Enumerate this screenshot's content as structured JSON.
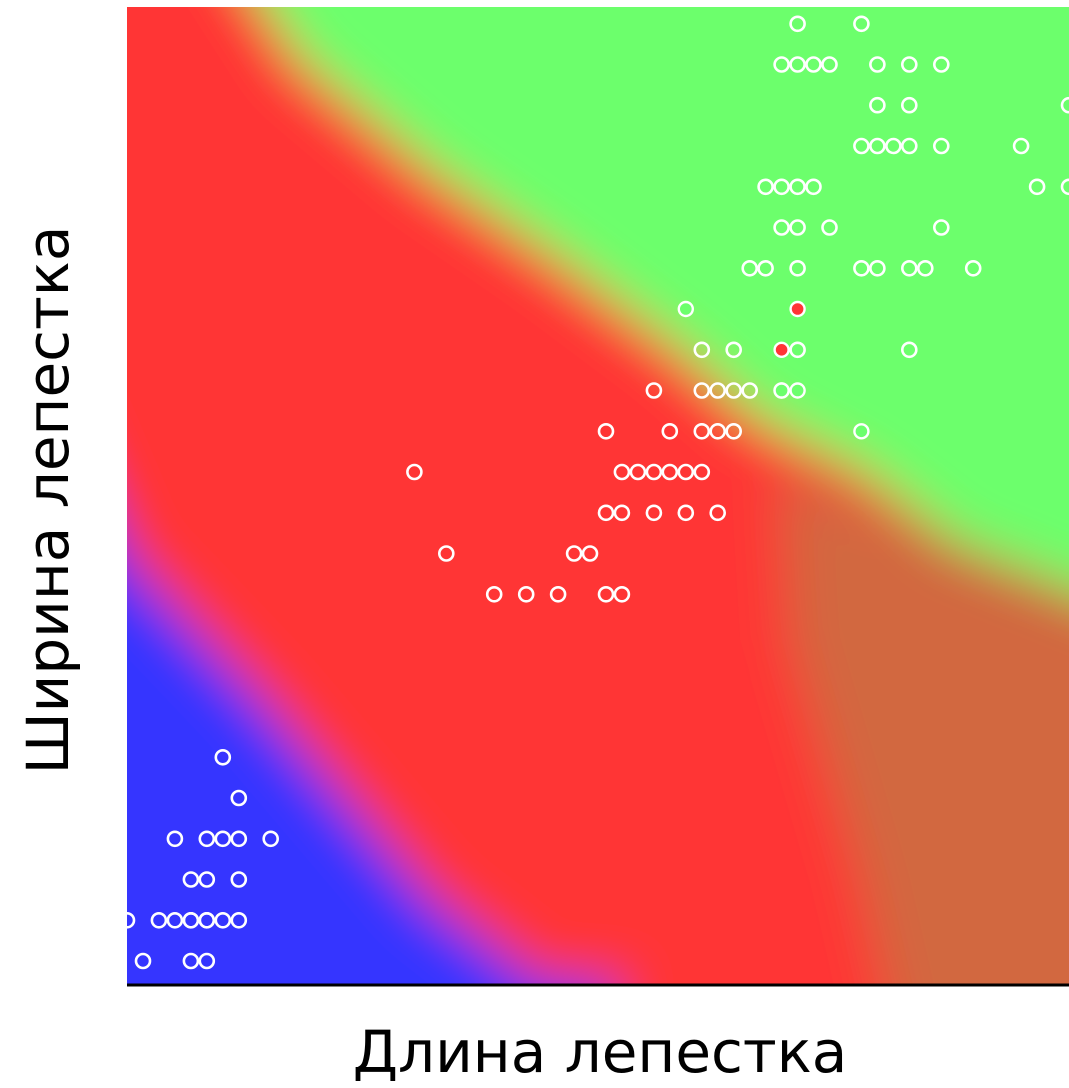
{
  "chart_data": {
    "type": "scatter",
    "xlabel": "Длина лепестка",
    "ylabel": "Ширина лепестка",
    "grid": false,
    "legend": "none",
    "xlim": [
      1.0,
      6.9
    ],
    "ylim": [
      0.1,
      2.5
    ],
    "region_colors": {
      "class_a": "#3535ff",
      "class_b": "#ff3535",
      "class_c": "#6cff6c"
    },
    "points": {
      "hollow": [
        [
          1.0,
          0.2
        ],
        [
          1.2,
          0.2
        ],
        [
          1.3,
          0.2
        ],
        [
          1.4,
          0.2
        ],
        [
          1.4,
          0.2
        ],
        [
          1.5,
          0.2
        ],
        [
          1.5,
          0.2
        ],
        [
          1.6,
          0.2
        ],
        [
          1.7,
          0.2
        ],
        [
          1.1,
          0.1
        ],
        [
          1.4,
          0.1
        ],
        [
          1.5,
          0.1
        ],
        [
          1.4,
          0.3
        ],
        [
          1.5,
          0.3
        ],
        [
          1.7,
          0.3
        ],
        [
          1.3,
          0.4
        ],
        [
          1.5,
          0.4
        ],
        [
          1.6,
          0.4
        ],
        [
          1.7,
          0.4
        ],
        [
          1.9,
          0.4
        ],
        [
          1.7,
          0.5
        ],
        [
          1.6,
          0.6
        ],
        [
          3.3,
          1.0
        ],
        [
          3.5,
          1.0
        ],
        [
          3.7,
          1.0
        ],
        [
          4.0,
          1.0
        ],
        [
          4.1,
          1.0
        ],
        [
          3.0,
          1.1
        ],
        [
          3.8,
          1.1
        ],
        [
          3.9,
          1.1
        ],
        [
          4.0,
          1.2
        ],
        [
          4.1,
          1.2
        ],
        [
          4.3,
          1.2
        ],
        [
          4.5,
          1.2
        ],
        [
          4.7,
          1.2
        ],
        [
          2.8,
          1.3
        ],
        [
          4.1,
          1.3
        ],
        [
          4.2,
          1.3
        ],
        [
          4.3,
          1.3
        ],
        [
          4.4,
          1.3
        ],
        [
          4.5,
          1.3
        ],
        [
          4.6,
          1.3
        ],
        [
          4.0,
          1.4
        ],
        [
          4.4,
          1.4
        ],
        [
          4.6,
          1.4
        ],
        [
          4.7,
          1.4
        ],
        [
          4.8,
          1.4
        ],
        [
          4.3,
          1.5
        ],
        [
          4.6,
          1.5
        ],
        [
          4.7,
          1.5
        ],
        [
          4.8,
          1.5
        ],
        [
          4.9,
          1.5
        ],
        [
          5.1,
          1.5
        ],
        [
          4.6,
          1.6
        ],
        [
          4.8,
          1.6
        ],
        [
          5.2,
          1.6
        ],
        [
          5.9,
          1.6
        ],
        [
          4.9,
          1.8
        ],
        [
          5.0,
          1.8
        ],
        [
          5.2,
          1.8
        ],
        [
          5.6,
          1.8
        ],
        [
          5.7,
          1.8
        ],
        [
          5.9,
          1.8
        ],
        [
          6.0,
          1.8
        ],
        [
          6.3,
          1.8
        ],
        [
          5.1,
          1.9
        ],
        [
          5.2,
          1.9
        ],
        [
          5.4,
          1.9
        ],
        [
          6.1,
          1.9
        ],
        [
          5.0,
          2.0
        ],
        [
          5.1,
          2.0
        ],
        [
          5.2,
          2.0
        ],
        [
          5.3,
          2.0
        ],
        [
          6.7,
          2.0
        ],
        [
          6.9,
          2.0
        ],
        [
          5.6,
          2.1
        ],
        [
          5.7,
          2.1
        ],
        [
          5.8,
          2.1
        ],
        [
          5.9,
          2.1
        ],
        [
          6.1,
          2.1
        ],
        [
          6.6,
          2.1
        ],
        [
          5.7,
          2.2
        ],
        [
          5.9,
          2.2
        ],
        [
          6.9,
          2.2
        ],
        [
          5.1,
          2.3
        ],
        [
          5.2,
          2.3
        ],
        [
          5.3,
          2.3
        ],
        [
          5.4,
          2.3
        ],
        [
          5.7,
          2.3
        ],
        [
          5.9,
          2.3
        ],
        [
          6.1,
          2.3
        ],
        [
          5.2,
          2.4
        ],
        [
          5.6,
          2.4
        ],
        [
          5.8,
          2.5
        ],
        [
          6.1,
          2.5
        ],
        [
          6.2,
          2.5
        ]
      ],
      "filled_red": [
        [
          5.1,
          1.6
        ],
        [
          5.2,
          1.7
        ]
      ],
      "filled_green": [
        [
          4.5,
          1.7
        ],
        [
          5.1,
          1.5
        ],
        [
          5.2,
          1.5
        ],
        [
          5.6,
          1.4
        ]
      ]
    }
  }
}
